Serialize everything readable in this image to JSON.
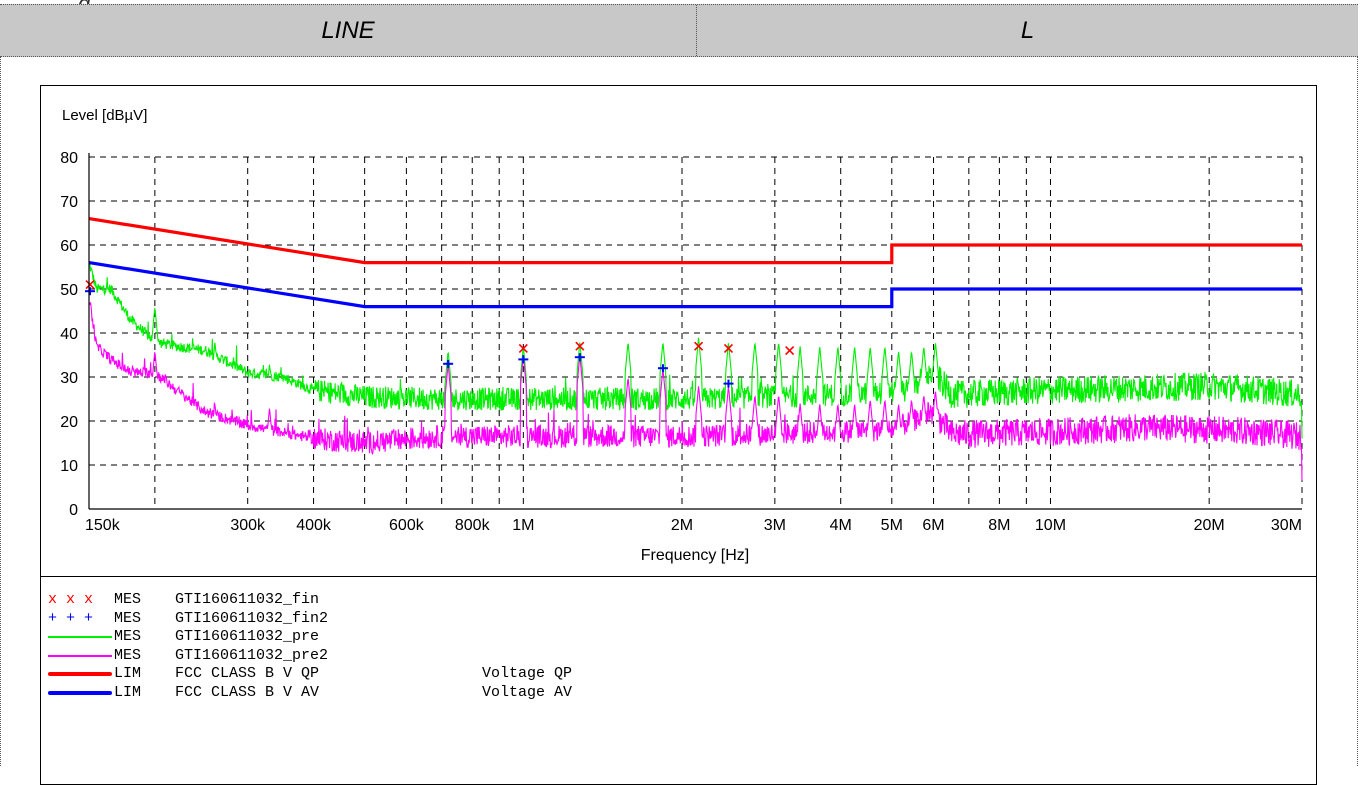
{
  "header": {
    "top_fragment": "g",
    "left_label": "LINE",
    "right_label": "L"
  },
  "chart_data": {
    "type": "line",
    "title": "",
    "ylabel": "Level [dBµV]",
    "xlabel": "Frequency [Hz]",
    "xscale": "log",
    "xlim": [
      150000,
      30000000
    ],
    "ylim": [
      0,
      80
    ],
    "grid": true,
    "y_ticks": [
      0,
      10,
      20,
      30,
      40,
      50,
      60,
      70,
      80
    ],
    "x_ticks": [
      {
        "value": 150000,
        "label": "150k"
      },
      {
        "value": 300000,
        "label": "300k"
      },
      {
        "value": 400000,
        "label": "400k"
      },
      {
        "value": 600000,
        "label": "600k"
      },
      {
        "value": 800000,
        "label": "800k"
      },
      {
        "value": 1000000,
        "label": "1M"
      },
      {
        "value": 2000000,
        "label": "2M"
      },
      {
        "value": 3000000,
        "label": "3M"
      },
      {
        "value": 4000000,
        "label": "4M"
      },
      {
        "value": 5000000,
        "label": "5M"
      },
      {
        "value": 6000000,
        "label": "6M"
      },
      {
        "value": 8000000,
        "label": "8M"
      },
      {
        "value": 10000000,
        "label": "10M"
      },
      {
        "value": 20000000,
        "label": "20M"
      },
      {
        "value": 30000000,
        "label": "30M"
      }
    ],
    "x_gridlines": [
      150000,
      200000,
      300000,
      400000,
      500000,
      600000,
      700000,
      800000,
      900000,
      1000000,
      2000000,
      3000000,
      4000000,
      5000000,
      6000000,
      7000000,
      8000000,
      9000000,
      10000000,
      20000000,
      30000000
    ],
    "limits": [
      {
        "name": "FCC CLASS B V QP",
        "color": "#ff0000",
        "points": [
          [
            150000,
            66
          ],
          [
            500000,
            56
          ],
          [
            5000000,
            56
          ],
          [
            5000000,
            60
          ],
          [
            30000000,
            60
          ]
        ]
      },
      {
        "name": "FCC CLASS B V AV",
        "color": "#0000ff",
        "points": [
          [
            150000,
            56
          ],
          [
            500000,
            46
          ],
          [
            5000000,
            46
          ],
          [
            5000000,
            50
          ],
          [
            30000000,
            50
          ]
        ]
      }
    ],
    "traces": [
      {
        "name": "GTI160611032_pre",
        "color": "#00ee00",
        "baseline": [
          [
            150000,
            56
          ],
          [
            155000,
            50
          ],
          [
            165000,
            50
          ],
          [
            180000,
            43
          ],
          [
            200000,
            38
          ],
          [
            220000,
            37
          ],
          [
            250000,
            36
          ],
          [
            300000,
            31
          ],
          [
            350000,
            30
          ],
          [
            400000,
            27
          ],
          [
            500000,
            25.5
          ],
          [
            700000,
            25
          ],
          [
            1000000,
            25
          ],
          [
            2000000,
            25
          ],
          [
            3000000,
            25.5
          ],
          [
            5000000,
            26.5
          ],
          [
            5500000,
            27
          ],
          [
            6000000,
            31
          ],
          [
            6500000,
            26
          ],
          [
            10000000,
            27
          ],
          [
            15000000,
            27.5
          ],
          [
            20000000,
            28
          ],
          [
            25000000,
            27
          ],
          [
            30000000,
            26
          ]
        ],
        "peaks": [
          [
            200000,
            46
          ],
          [
            260000,
            38
          ],
          [
            330000,
            33
          ],
          [
            720000,
            36
          ],
          [
            1000000,
            37
          ],
          [
            1280000,
            38
          ],
          [
            1580000,
            38
          ],
          [
            1840000,
            38
          ],
          [
            2150000,
            39
          ],
          [
            2450000,
            38
          ],
          [
            2750000,
            38
          ],
          [
            3050000,
            38
          ],
          [
            3350000,
            37
          ],
          [
            3650000,
            37
          ],
          [
            3950000,
            37
          ],
          [
            4250000,
            37
          ],
          [
            4550000,
            37
          ],
          [
            4850000,
            37
          ],
          [
            5150000,
            36
          ],
          [
            5450000,
            36
          ],
          [
            5750000,
            37
          ],
          [
            6050000,
            38
          ]
        ]
      },
      {
        "name": "GTI160611032_pre2",
        "color": "#ff00ff",
        "baseline": [
          [
            150000,
            48
          ],
          [
            155000,
            37
          ],
          [
            165000,
            34
          ],
          [
            180000,
            31
          ],
          [
            200000,
            31
          ],
          [
            220000,
            27
          ],
          [
            250000,
            22
          ],
          [
            300000,
            19
          ],
          [
            400000,
            16
          ],
          [
            500000,
            15
          ],
          [
            700000,
            16.5
          ],
          [
            1000000,
            16.5
          ],
          [
            2000000,
            16.5
          ],
          [
            3000000,
            17
          ],
          [
            5000000,
            18
          ],
          [
            6000000,
            22
          ],
          [
            6500000,
            17
          ],
          [
            10000000,
            17.5
          ],
          [
            15000000,
            18.5
          ],
          [
            20000000,
            18
          ],
          [
            25000000,
            17.5
          ],
          [
            30000000,
            16.5
          ]
        ],
        "peaks": [
          [
            200000,
            36
          ],
          [
            260000,
            24
          ],
          [
            330000,
            23
          ],
          [
            720000,
            33
          ],
          [
            1000000,
            35
          ],
          [
            1280000,
            35
          ],
          [
            1580000,
            30
          ],
          [
            1840000,
            32
          ],
          [
            2150000,
            28
          ],
          [
            2450000,
            28
          ],
          [
            2750000,
            26
          ],
          [
            3050000,
            26
          ],
          [
            3350000,
            24
          ],
          [
            3650000,
            24
          ],
          [
            3950000,
            24
          ],
          [
            4250000,
            24
          ],
          [
            4550000,
            25
          ],
          [
            4850000,
            25
          ],
          [
            5150000,
            24
          ],
          [
            5450000,
            25
          ],
          [
            5750000,
            26
          ],
          [
            6050000,
            27
          ]
        ]
      }
    ],
    "markers_fin": {
      "name": "GTI160611032_fin",
      "symbol": "x",
      "color": "#ff0000",
      "points": [
        [
          150000,
          51
        ],
        [
          1000000,
          36.5
        ],
        [
          1280000,
          37
        ],
        [
          2150000,
          37
        ],
        [
          2450000,
          36.5
        ],
        [
          3200000,
          36
        ]
      ]
    },
    "markers_fin2": {
      "name": "GTI160611032_fin2",
      "symbol": "+",
      "color": "#0000ff",
      "points": [
        [
          150000,
          49.5
        ],
        [
          720000,
          33
        ],
        [
          1000000,
          34
        ],
        [
          1280000,
          34.5
        ],
        [
          1840000,
          32
        ],
        [
          2450000,
          28.5
        ]
      ]
    }
  },
  "legend": [
    {
      "kind": "marker",
      "symbol": "x",
      "color": "#ff0000",
      "type": "MES",
      "name": "GTI160611032_fin",
      "desc": ""
    },
    {
      "kind": "marker",
      "symbol": "+",
      "color": "#0000ff",
      "type": "MES",
      "name": "GTI160611032_fin2",
      "desc": ""
    },
    {
      "kind": "line",
      "color": "#00ee00",
      "type": "MES",
      "name": "GTI160611032_pre",
      "desc": ""
    },
    {
      "kind": "line",
      "color": "#ff00ff",
      "type": "MES",
      "name": "GTI160611032_pre2",
      "desc": ""
    },
    {
      "kind": "thick",
      "color": "#ff0000",
      "type": "LIM",
      "name": "FCC CLASS B V QP",
      "desc": "Voltage QP"
    },
    {
      "kind": "thick",
      "color": "#0000ff",
      "type": "LIM",
      "name": "FCC CLASS B V AV",
      "desc": "Voltage AV"
    }
  ]
}
